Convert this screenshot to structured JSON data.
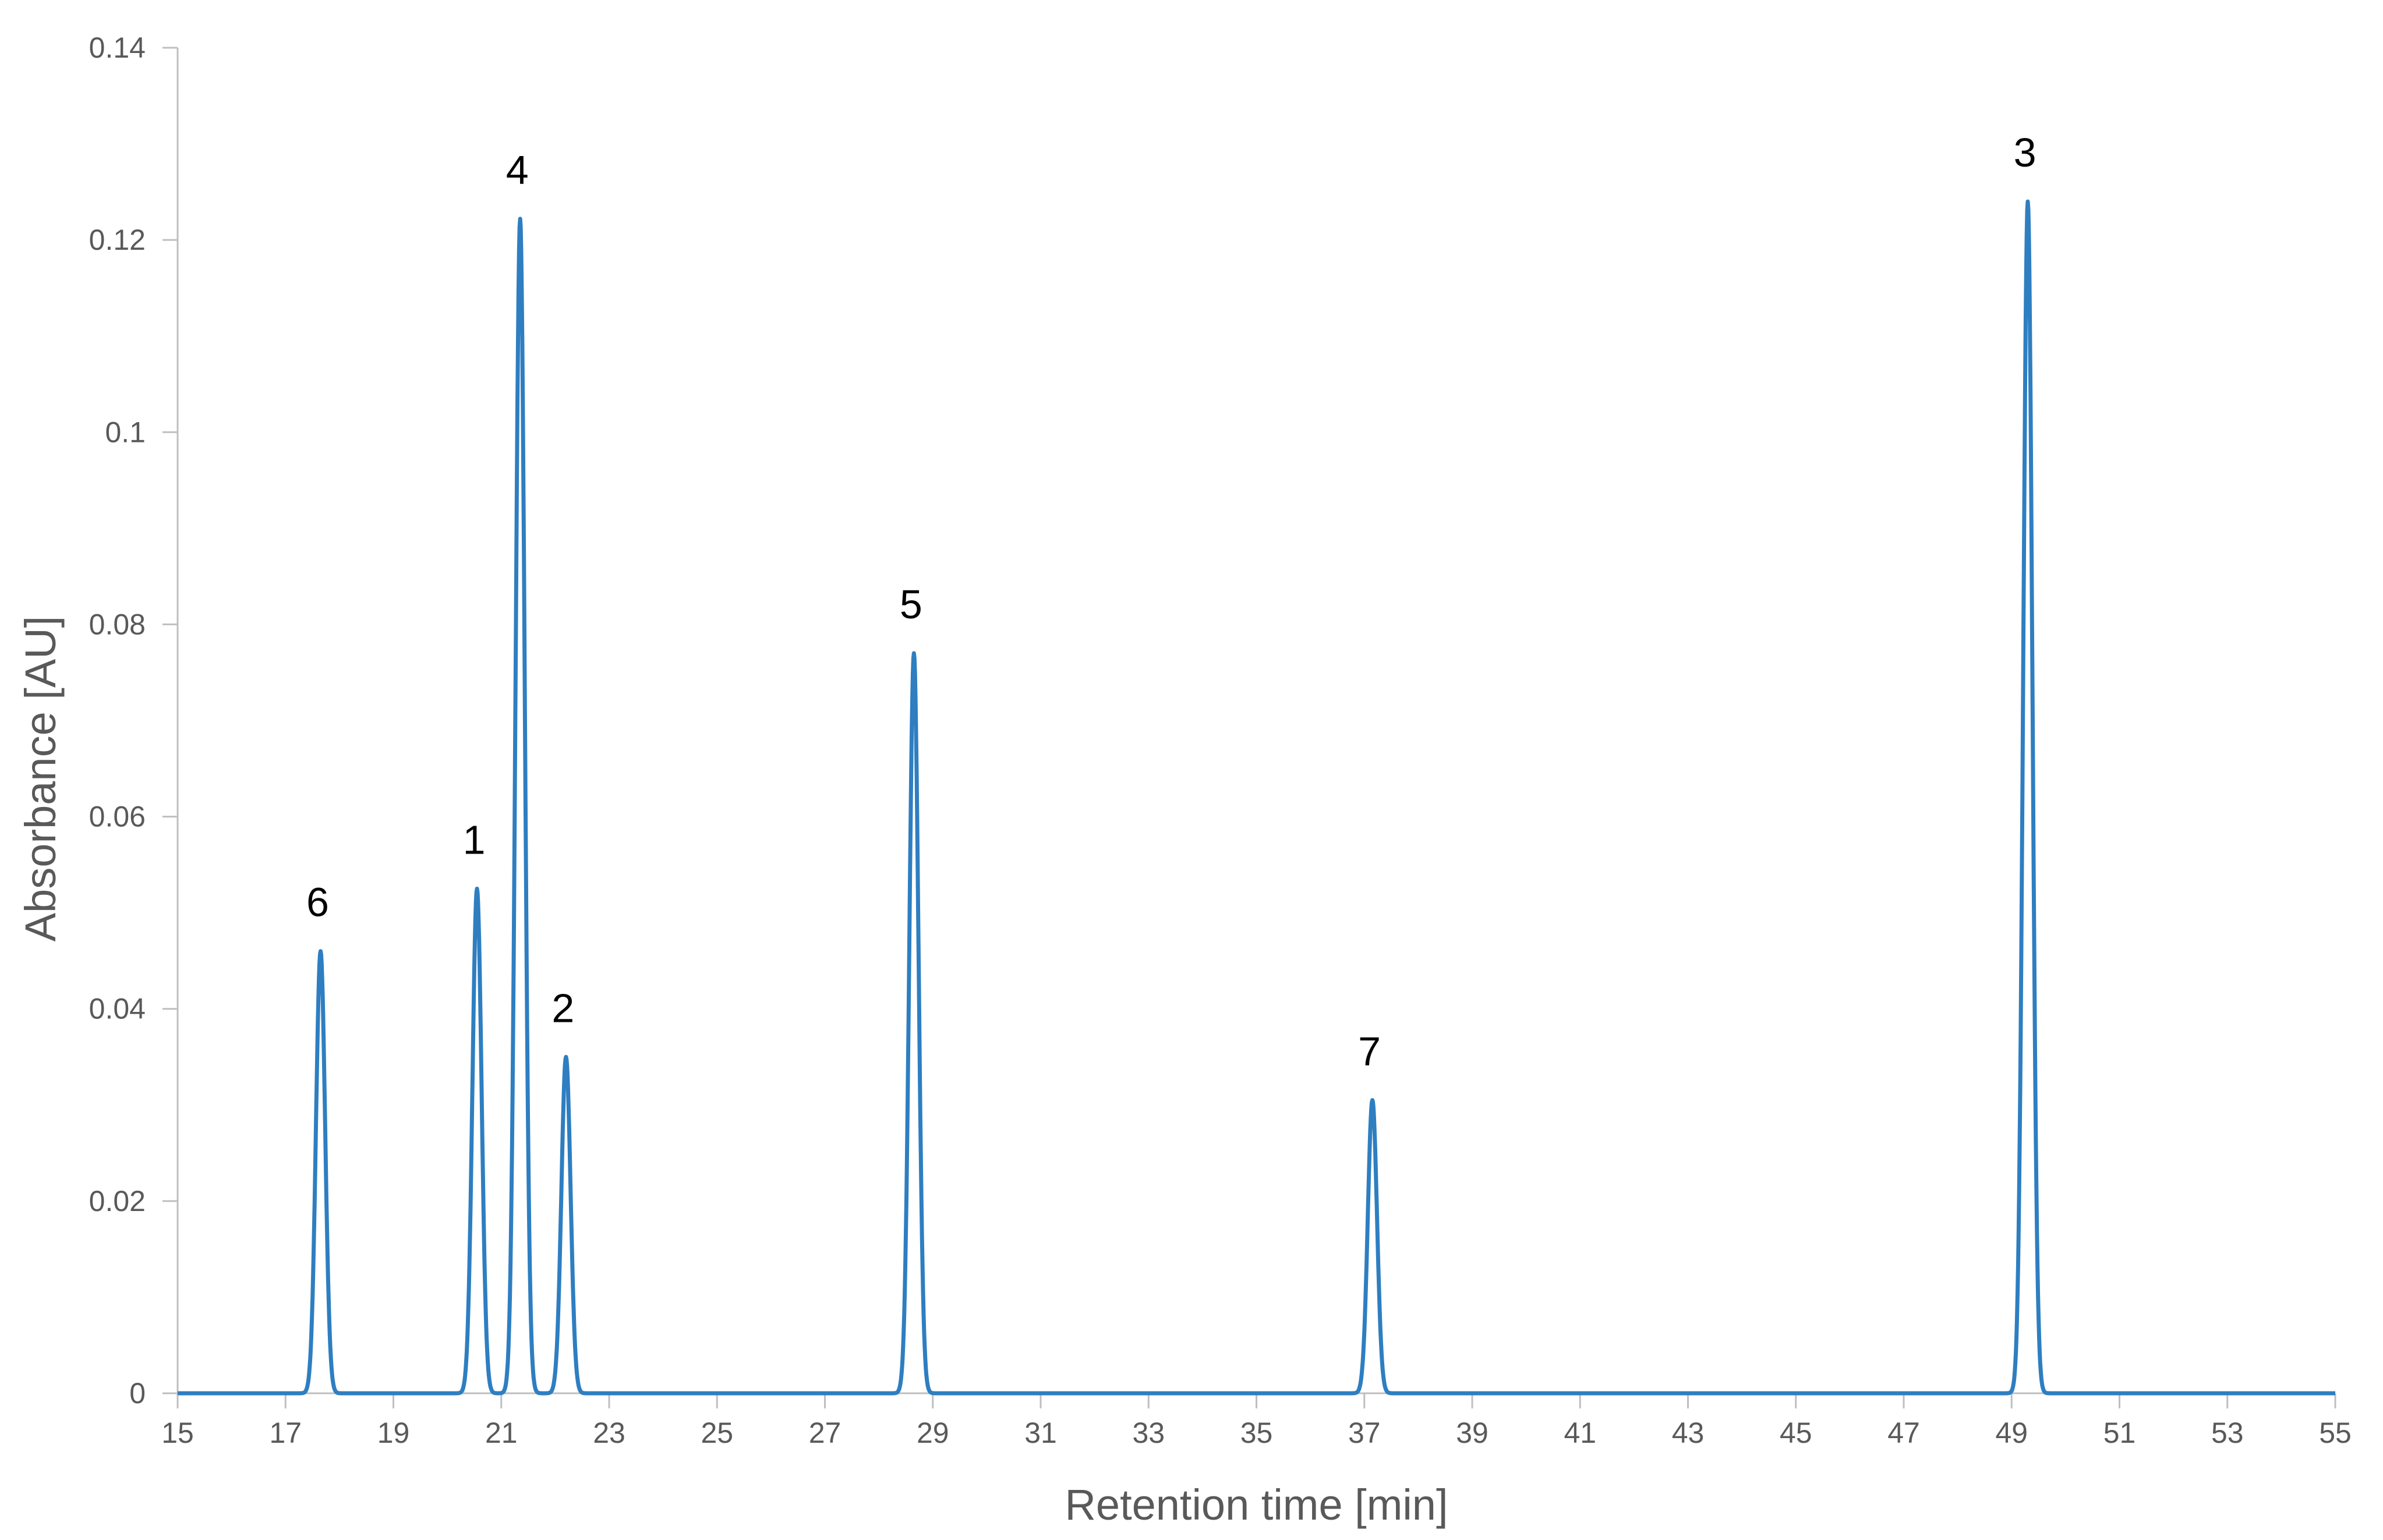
{
  "chart_data": {
    "type": "line",
    "title": "",
    "xlabel": "Retention time [min]",
    "ylabel": "Absorbance [AU]",
    "xlim": [
      15,
      55
    ],
    "ylim": [
      0,
      0.14
    ],
    "x_ticks": [
      15,
      17,
      19,
      21,
      23,
      25,
      27,
      29,
      31,
      33,
      35,
      37,
      39,
      41,
      43,
      45,
      47,
      49,
      51,
      53,
      55
    ],
    "y_ticks": [
      0,
      0.02,
      0.04,
      0.06,
      0.08,
      0.1,
      0.12,
      0.14
    ],
    "y_tick_labels": [
      "0",
      "0.02",
      "0.04",
      "0.06",
      "0.08",
      "0.1",
      "0.12",
      "0.14"
    ],
    "grid": false,
    "legend": "none",
    "series_color": "#2E7EC1",
    "axis_color": "#BFBFBF",
    "baseline": 0,
    "peaks": [
      {
        "label": "6",
        "retention_time": 17.65,
        "absorbance": 0.046
      },
      {
        "label": "1",
        "retention_time": 20.55,
        "absorbance": 0.0525
      },
      {
        "label": "4",
        "retention_time": 21.35,
        "absorbance": 0.1222
      },
      {
        "label": "2",
        "retention_time": 22.2,
        "absorbance": 0.035
      },
      {
        "label": "5",
        "retention_time": 28.65,
        "absorbance": 0.077
      },
      {
        "label": "7",
        "retention_time": 37.15,
        "absorbance": 0.0305
      },
      {
        "label": "3",
        "retention_time": 49.3,
        "absorbance": 0.124
      }
    ]
  }
}
